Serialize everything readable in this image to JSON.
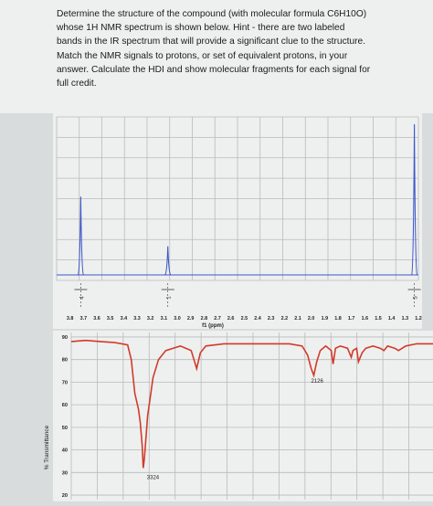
{
  "question": {
    "text": "Determine the structure of the compound (with molecular formula C6H10O)\nwhose 1H NMR spectrum is shown below.  Hint - there are two labeled\nbands in the IR spectrum that will provide a significant clue to the structure.\nMatch the NMR signals to protons, or set of equivalent protons, in your\nanswer.  Calculate the HDI and show molecular fragments for each signal for\nfull credit."
  },
  "colors": {
    "nmr_line": "#3d57c8",
    "ir_line": "#d23a2a",
    "grid": "#b9bbbb",
    "background": "#eef0ef"
  },
  "chart_data": [
    {
      "type": "line",
      "kind": "1H NMR spectrum",
      "xlabel": "f1 (ppm)",
      "x_reversed": true,
      "x_ticks": [
        "3.8",
        "3.7",
        "3.6",
        "3.5",
        "3.4",
        "3.3",
        "3.2",
        "3.1",
        "3.0",
        "2.9",
        "2.8",
        "2.7",
        "2.6",
        "2.5",
        "2.4",
        "2.3",
        "2.2",
        "2.1",
        "2.0",
        "1.9",
        "1.8",
        "1.7",
        "1.6",
        "1.5",
        "1.4",
        "1.3",
        "1.2"
      ],
      "xlim": [
        1.2,
        3.9
      ],
      "peaks": [
        {
          "ppm": 3.72,
          "intensity": 0.52,
          "integration": "4"
        },
        {
          "ppm": 3.07,
          "intensity": 0.19,
          "integration": "1"
        },
        {
          "ppm": 1.23,
          "intensity": 1.0,
          "integration": "5"
        }
      ],
      "grid": true
    },
    {
      "type": "line",
      "kind": "IR spectrum",
      "ylabel": "% Transmittance",
      "y_ticks": [
        "90",
        "80",
        "70",
        "60",
        "50",
        "40",
        "30",
        "20"
      ],
      "ylim": [
        18,
        92
      ],
      "grid": true,
      "annotations": [
        {
          "label": "3324",
          "wavenumber": 3324
        },
        {
          "label": "2126",
          "wavenumber": 2126
        }
      ],
      "points": [
        [
          0.0,
          88
        ],
        [
          0.04,
          88.5
        ],
        [
          0.08,
          88
        ],
        [
          0.12,
          87.5
        ],
        [
          0.155,
          86.5
        ],
        [
          0.165,
          80
        ],
        [
          0.175,
          65
        ],
        [
          0.185,
          58
        ],
        [
          0.19,
          52
        ],
        [
          0.195,
          42
        ],
        [
          0.198,
          32
        ],
        [
          0.201,
          36
        ],
        [
          0.21,
          55
        ],
        [
          0.225,
          72
        ],
        [
          0.24,
          80
        ],
        [
          0.26,
          84
        ],
        [
          0.3,
          86
        ],
        [
          0.33,
          84
        ],
        [
          0.345,
          76
        ],
        [
          0.355,
          83
        ],
        [
          0.37,
          86
        ],
        [
          0.42,
          87
        ],
        [
          0.48,
          87
        ],
        [
          0.55,
          87
        ],
        [
          0.6,
          87
        ],
        [
          0.635,
          86
        ],
        [
          0.65,
          82
        ],
        [
          0.66,
          76
        ],
        [
          0.667,
          73
        ],
        [
          0.675,
          79
        ],
        [
          0.685,
          84
        ],
        [
          0.7,
          86
        ],
        [
          0.715,
          84
        ],
        [
          0.72,
          78
        ],
        [
          0.727,
          85
        ],
        [
          0.74,
          86
        ],
        [
          0.76,
          85
        ],
        [
          0.77,
          81
        ],
        [
          0.775,
          84
        ],
        [
          0.785,
          85
        ],
        [
          0.79,
          79
        ],
        [
          0.8,
          83
        ],
        [
          0.81,
          85
        ],
        [
          0.83,
          86
        ],
        [
          0.85,
          85
        ],
        [
          0.86,
          84
        ],
        [
          0.87,
          86
        ],
        [
          0.89,
          85
        ],
        [
          0.9,
          84
        ],
        [
          0.92,
          86
        ],
        [
          0.95,
          87
        ],
        [
          0.98,
          87
        ],
        [
          1.0,
          87
        ]
      ]
    }
  ]
}
